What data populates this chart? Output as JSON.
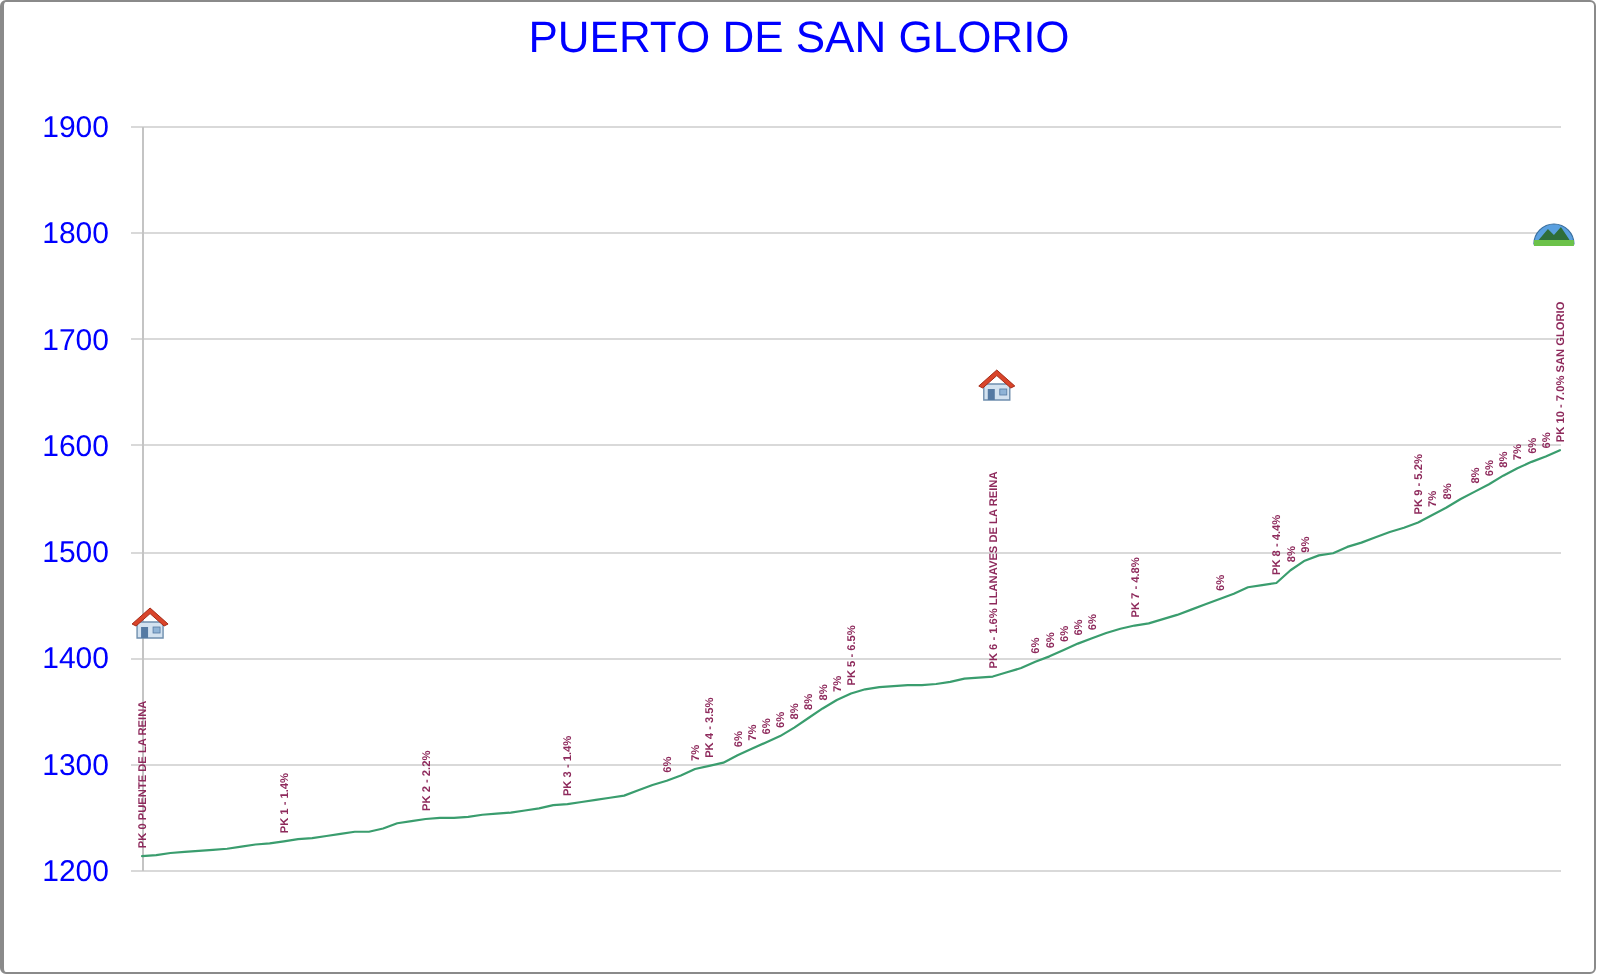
{
  "chart_data": {
    "type": "line",
    "title": "PUERTO DE SAN GLORIO",
    "categories": [
      "PK 0 PUENTE DE LA REINA",
      null,
      null,
      null,
      null,
      null,
      null,
      null,
      null,
      null,
      "PK 1 - 1.4%",
      null,
      null,
      null,
      null,
      null,
      null,
      null,
      null,
      null,
      "PK 2 - 2.2%",
      null,
      null,
      null,
      null,
      null,
      null,
      null,
      null,
      null,
      "PK 3 - 1.4%",
      null,
      null,
      null,
      null,
      null,
      null,
      "6%",
      null,
      "7%",
      "PK 4 - 3.5%",
      null,
      "6%",
      "7%",
      "6%",
      "6%",
      "8%",
      "8%",
      "8%",
      "7%",
      "PK 5 - 6.5%",
      null,
      null,
      null,
      null,
      null,
      null,
      null,
      null,
      null,
      "PK 6 - 1.6% LLANAVES DE LA REINA",
      null,
      null,
      "6%",
      "6%",
      "6%",
      "6%",
      "6%",
      null,
      null,
      "PK 7 - 4.8%",
      null,
      null,
      null,
      null,
      null,
      "6%",
      null,
      null,
      null,
      "PK 8 - 4.4%",
      "8%",
      "9%",
      null,
      null,
      null,
      null,
      null,
      null,
      null,
      "PK 9 - 5.2%",
      "7%",
      "8%",
      null,
      "8%",
      "6%",
      "8%",
      "7%",
      "6%",
      "6%",
      "PK 10 - 7.0% SAN GLORIO"
    ],
    "values": [
      1213,
      1214,
      1216,
      1217,
      1218,
      1219,
      1220,
      1222,
      1224,
      1225,
      1227,
      1229,
      1230,
      1232,
      1234,
      1236,
      1236,
      1239,
      1244,
      1246,
      1248,
      1249,
      1249,
      1250,
      1252,
      1253,
      1254,
      1256,
      1258,
      1261,
      1262,
      1264,
      1266,
      1268,
      1270,
      1275,
      1280,
      1284,
      1289,
      1295,
      1298,
      1301,
      1308,
      1314,
      1320,
      1326,
      1334,
      1343,
      1352,
      1360,
      1366,
      1370,
      1372,
      1373,
      1374,
      1374,
      1375,
      1377,
      1380,
      1381,
      1382,
      1386,
      1390,
      1396,
      1401,
      1407,
      1413,
      1418,
      1423,
      1427,
      1430,
      1432,
      1436,
      1440,
      1445,
      1450,
      1455,
      1460,
      1466,
      1468,
      1470,
      1482,
      1491,
      1496,
      1498,
      1504,
      1508,
      1513,
      1518,
      1522,
      1527,
      1534,
      1541,
      1549,
      1556,
      1563,
      1571,
      1578,
      1584,
      1589,
      1595
    ],
    "color": "#3a9d6e",
    "ylim": [
      1200,
      1900
    ],
    "yticks": [
      1200,
      1300,
      1400,
      1500,
      1600,
      1700,
      1800,
      1900
    ],
    "grid": "y",
    "tick_labels": "y",
    "marker": "none",
    "line_style": "solid"
  }
}
